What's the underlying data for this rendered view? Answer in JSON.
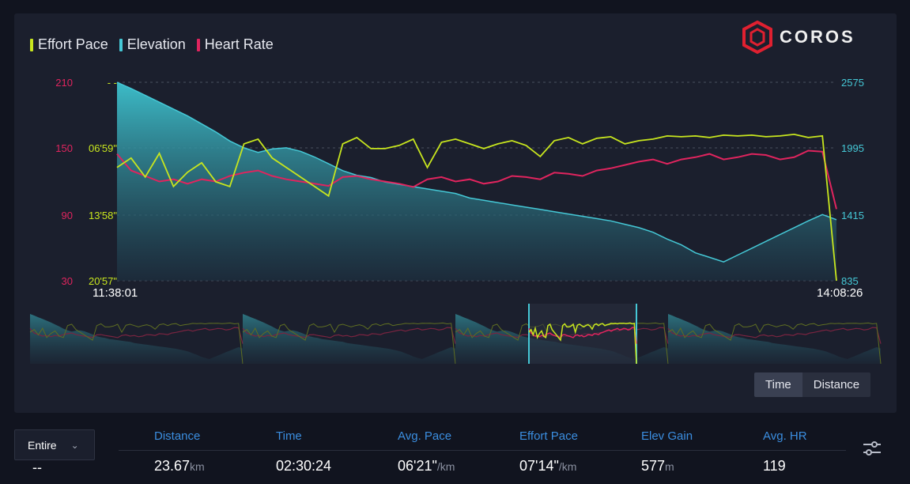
{
  "legend": [
    {
      "label": "Effort Pace",
      "color": "#c8e61e"
    },
    {
      "label": "Elevation",
      "color": "#45c8d6"
    },
    {
      "label": "Heart Rate",
      "color": "#e0245e"
    }
  ],
  "brand": {
    "name": "COROS",
    "accent": "#e02030"
  },
  "axes": {
    "hr_ticks": [
      "210",
      "150",
      "90",
      "30"
    ],
    "pace_ticks": [
      "- -",
      "06'59\"",
      "13'58\"",
      "20'57\""
    ],
    "elev_ticks": [
      "2575",
      "1995",
      "1415",
      "835"
    ],
    "time_start": "11:38:01",
    "time_end": "14:08:26"
  },
  "toggle": {
    "time": "Time",
    "distance": "Distance",
    "active": "Time"
  },
  "range_select": {
    "value": "Entire"
  },
  "stats": {
    "range_value": "--",
    "columns": [
      {
        "header": "Distance",
        "value": "23.67",
        "unit": "km"
      },
      {
        "header": "Time",
        "value": "02:30:24",
        "unit": ""
      },
      {
        "header": "Avg. Pace",
        "value": "06'21\"",
        "unit": "/km"
      },
      {
        "header": "Effort Pace",
        "value": "07'14\"",
        "unit": "/km"
      },
      {
        "header": "Elev Gain",
        "value": "577",
        "unit": "m"
      },
      {
        "header": "Avg. HR",
        "value": "119",
        "unit": ""
      }
    ]
  },
  "chart_data": {
    "type": "line",
    "x_range": [
      "11:38:01",
      "14:08:26"
    ],
    "hr_ylim": [
      30,
      210
    ],
    "elev_ylim": [
      835,
      2575
    ],
    "pace_ylim_sec_per_km": [
      0,
      1257
    ],
    "series": [
      {
        "name": "Elevation",
        "unit": "m",
        "values": [
          2575,
          2520,
          2460,
          2400,
          2340,
          2280,
          2210,
          2140,
          2060,
          2000,
          1960,
          1990,
          2000,
          1970,
          1920,
          1860,
          1800,
          1760,
          1740,
          1700,
          1680,
          1660,
          1640,
          1620,
          1600,
          1560,
          1540,
          1520,
          1500,
          1480,
          1460,
          1440,
          1420,
          1400,
          1380,
          1360,
          1330,
          1300,
          1260,
          1200,
          1150,
          1080,
          1040,
          1000,
          1060,
          1120,
          1180,
          1240,
          1300,
          1360,
          1415,
          1370
        ]
      },
      {
        "name": "Heart Rate",
        "unit": "bpm",
        "values": [
          145,
          130,
          125,
          120,
          122,
          118,
          122,
          120,
          125,
          128,
          130,
          125,
          122,
          120,
          118,
          116,
          124,
          125,
          122,
          120,
          118,
          115,
          122,
          124,
          120,
          122,
          118,
          120,
          125,
          124,
          122,
          128,
          127,
          125,
          130,
          132,
          135,
          138,
          140,
          136,
          140,
          142,
          145,
          140,
          142,
          145,
          144,
          140,
          142,
          148,
          147,
          95
        ]
      },
      {
        "name": "Effort Pace",
        "unit": "min/km",
        "values": [
          "9:00",
          "8:00",
          "10:00",
          "7:30",
          "11:00",
          "9:30",
          "8:30",
          "10:30",
          "11:00",
          "6:30",
          "6:00",
          "8:00",
          "9:00",
          "10:00",
          "11:00",
          "12:00",
          "6:30",
          "5:50",
          "7:00",
          "7:00",
          "6:40",
          "6:00",
          "9:00",
          "6:20",
          "6:00",
          "6:30",
          "7:00",
          "6:30",
          "6:10",
          "6:40",
          "7:50",
          "6:10",
          "5:50",
          "6:30",
          "5:55",
          "5:45",
          "6:30",
          "6:10",
          "6:00",
          "5:40",
          "5:45",
          "5:40",
          "5:50",
          "5:35",
          "5:40",
          "5:35",
          "5:45",
          "5:40",
          "5:30",
          "5:50",
          "5:40",
          "20:57"
        ]
      }
    ]
  }
}
